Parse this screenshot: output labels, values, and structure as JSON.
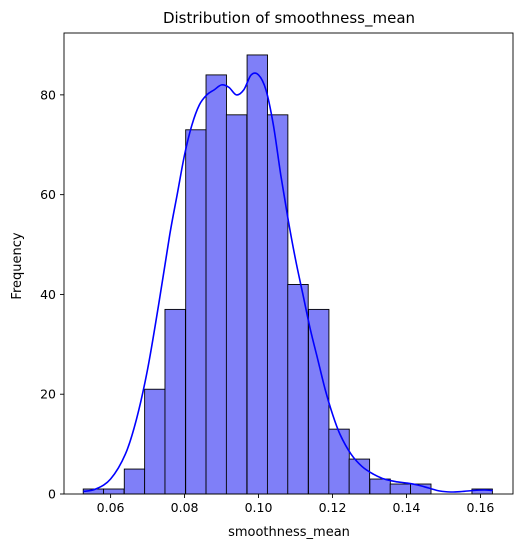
{
  "chart_data": {
    "type": "bar",
    "title": "Distribution of smoothness_mean",
    "xlabel": "smoothness_mean",
    "ylabel": "Frequency",
    "xlim": [
      0.0474,
      0.1688
    ],
    "ylim": [
      0,
      92.4
    ],
    "x_ticks": [
      0.06,
      0.08,
      0.1,
      0.12,
      0.14,
      0.16
    ],
    "x_tick_labels": [
      "0.06",
      "0.08",
      "0.10",
      "0.12",
      "0.14",
      "0.16"
    ],
    "y_ticks": [
      0,
      20,
      40,
      60,
      80
    ],
    "y_tick_labels": [
      "0",
      "20",
      "40",
      "60",
      "80"
    ],
    "bin_width": 0.00553,
    "bins": [
      {
        "start": 0.0526,
        "count": 1
      },
      {
        "start": 0.0581,
        "count": 1
      },
      {
        "start": 0.0637,
        "count": 5
      },
      {
        "start": 0.0692,
        "count": 21
      },
      {
        "start": 0.0747,
        "count": 37
      },
      {
        "start": 0.0803,
        "count": 73
      },
      {
        "start": 0.0858,
        "count": 84
      },
      {
        "start": 0.0913,
        "count": 76
      },
      {
        "start": 0.0969,
        "count": 88
      },
      {
        "start": 0.1024,
        "count": 76
      },
      {
        "start": 0.1079,
        "count": 42
      },
      {
        "start": 0.1135,
        "count": 37
      },
      {
        "start": 0.119,
        "count": 13
      },
      {
        "start": 0.1245,
        "count": 7
      },
      {
        "start": 0.1301,
        "count": 3
      },
      {
        "start": 0.1356,
        "count": 2
      },
      {
        "start": 0.1411,
        "count": 2
      },
      {
        "start": 0.1467,
        "count": 0
      },
      {
        "start": 0.1522,
        "count": 0
      },
      {
        "start": 0.1577,
        "count": 1
      }
    ],
    "kde": {
      "x": [
        0.0526,
        0.056,
        0.06,
        0.064,
        0.067,
        0.07,
        0.073,
        0.076,
        0.078,
        0.08,
        0.082,
        0.084,
        0.086,
        0.088,
        0.09,
        0.092,
        0.094,
        0.096,
        0.098,
        0.1,
        0.102,
        0.104,
        0.106,
        0.108,
        0.11,
        0.112,
        0.114,
        0.116,
        0.118,
        0.12,
        0.122,
        0.125,
        0.128,
        0.131,
        0.134,
        0.137,
        0.14,
        0.143,
        0.146,
        0.149,
        0.152,
        0.155,
        0.158,
        0.161,
        0.1633
      ],
      "y": [
        0.5,
        1,
        3,
        8,
        15,
        25,
        38,
        52,
        60,
        68,
        74,
        78,
        80,
        81,
        82,
        81.5,
        80,
        81,
        84,
        84,
        81,
        74,
        64,
        55,
        47,
        40,
        33,
        27,
        21,
        16,
        12,
        8,
        5.5,
        4,
        3,
        2.5,
        2.2,
        1.8,
        1.2,
        0.6,
        0.4,
        0.5,
        0.7,
        0.8,
        0.7
      ]
    },
    "colors": {
      "bar_fill": "#7f7ff8",
      "bar_edge": "#000000",
      "kde_line": "#0000ff"
    },
    "grid": false
  }
}
